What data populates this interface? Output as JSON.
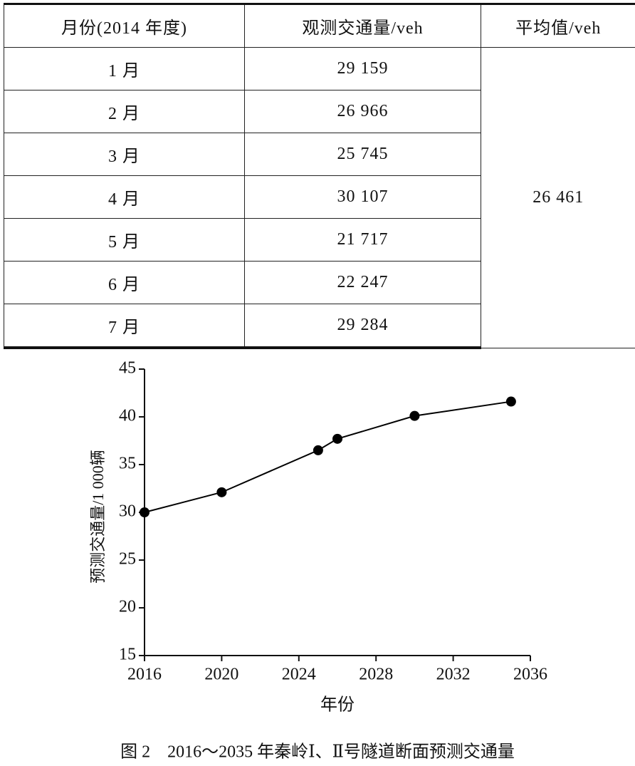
{
  "table": {
    "header": [
      "月份(2014 年度)",
      "观测交通量/veh",
      "平均值/veh"
    ],
    "rows": [
      [
        "1 月",
        "29 159"
      ],
      [
        "2 月",
        "26 966"
      ],
      [
        "3 月",
        "25 745"
      ],
      [
        "4 月",
        "30 107"
      ],
      [
        "5 月",
        "21 717"
      ],
      [
        "6 月",
        "22 247"
      ],
      [
        "7 月",
        "29 284"
      ]
    ],
    "average": "26 461"
  },
  "chart_data": {
    "type": "line",
    "caption": "图 2　2016～2035 年秦岭Ⅰ、Ⅱ号隧道断面预测交通量",
    "xlabel": "年份",
    "ylabel": "预测交通量/1 000辆",
    "x": [
      2016,
      2020,
      2025,
      2026,
      2030,
      2035
    ],
    "values": [
      30,
      32.1,
      36.5,
      37.7,
      40.1,
      41.6
    ],
    "color": "#000000",
    "xlim": [
      2016,
      2036
    ],
    "xticks": [
      2016,
      2020,
      2024,
      2028,
      2032,
      2036
    ],
    "ylim": [
      15,
      45
    ],
    "yticks": [
      15,
      20,
      25,
      30,
      35,
      40,
      45
    ]
  }
}
